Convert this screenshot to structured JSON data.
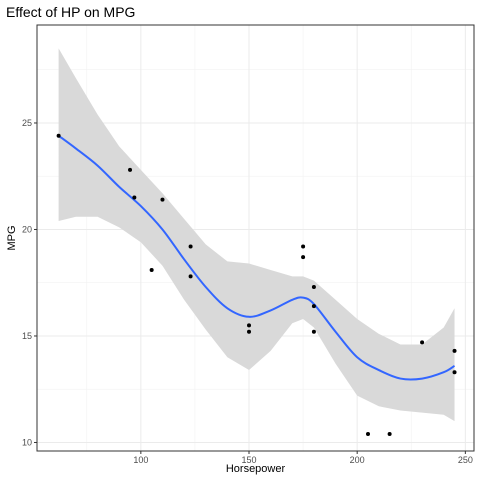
{
  "chart_data": {
    "type": "scatter",
    "title": "Effect of HP on MPG",
    "xlabel": "Horsepower",
    "ylabel": "MPG",
    "xlim": [
      52,
      254
    ],
    "ylim": [
      9.6,
      29.6
    ],
    "x_ticks": [
      100,
      150,
      200,
      250
    ],
    "y_ticks": [
      10,
      15,
      20,
      25
    ],
    "x_minor": [
      75,
      125,
      175,
      225
    ],
    "y_minor": [
      12.5,
      17.5,
      22.5,
      27.5
    ],
    "grid": true,
    "legend": "none",
    "colors": {
      "points": "#000000",
      "smooth_line": "#3366FF",
      "confidence_band": "#D9D9D9",
      "grid": "#EBEBEB",
      "panel_border": "#333333"
    },
    "points": [
      {
        "x": 62,
        "y": 24.4
      },
      {
        "x": 95,
        "y": 22.8
      },
      {
        "x": 97,
        "y": 21.5
      },
      {
        "x": 105,
        "y": 18.1
      },
      {
        "x": 110,
        "y": 21.4
      },
      {
        "x": 123,
        "y": 19.2
      },
      {
        "x": 123,
        "y": 17.8
      },
      {
        "x": 150,
        "y": 15.5
      },
      {
        "x": 150,
        "y": 15.2
      },
      {
        "x": 175,
        "y": 19.2
      },
      {
        "x": 175,
        "y": 18.7
      },
      {
        "x": 180,
        "y": 17.3
      },
      {
        "x": 180,
        "y": 16.4
      },
      {
        "x": 180,
        "y": 15.2
      },
      {
        "x": 205,
        "y": 10.4
      },
      {
        "x": 215,
        "y": 10.4
      },
      {
        "x": 230,
        "y": 14.7
      },
      {
        "x": 245,
        "y": 14.3
      },
      {
        "x": 245,
        "y": 13.3
      }
    ],
    "smooth": {
      "method": "loess",
      "x": [
        62,
        70,
        80,
        90,
        100,
        110,
        120,
        130,
        140,
        150,
        160,
        170,
        175,
        180,
        190,
        200,
        210,
        220,
        230,
        240,
        245
      ],
      "fit": [
        24.4,
        23.8,
        23.0,
        22.0,
        21.1,
        20.0,
        18.6,
        17.3,
        16.3,
        15.9,
        16.2,
        16.7,
        16.8,
        16.5,
        15.2,
        14.0,
        13.4,
        13.0,
        13.0,
        13.3,
        13.6
      ],
      "lower": [
        20.4,
        20.6,
        20.6,
        20.1,
        19.4,
        18.3,
        16.7,
        15.3,
        14.0,
        13.4,
        14.3,
        15.6,
        15.8,
        15.4,
        13.7,
        12.2,
        11.7,
        11.5,
        11.4,
        11.3,
        11.0
      ],
      "upper": [
        28.5,
        27.1,
        25.4,
        23.9,
        22.8,
        21.7,
        20.5,
        19.3,
        18.5,
        18.4,
        18.1,
        17.8,
        17.8,
        17.6,
        16.7,
        15.8,
        15.1,
        14.6,
        14.6,
        15.4,
        16.3
      ]
    }
  }
}
